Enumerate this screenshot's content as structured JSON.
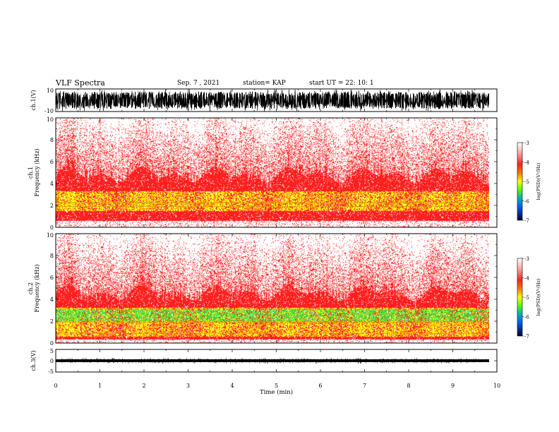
{
  "header": {
    "title": "VLF Spectra",
    "date": "Sep. 7 , 2021",
    "station": "station= KAP",
    "start_ut": "start UT =  22: 10: 1"
  },
  "colors": {
    "spectrogram_background": "#ffffff",
    "spectrogram_main": "#ff2020",
    "spectrogram_light": "#ffb0b0",
    "band_yellow": "#ffff00",
    "band_green": "#40e040",
    "waveform": "#000000"
  },
  "chart_data": [
    {
      "type": "line",
      "name": "ch1-waveform",
      "ylabel": "ch.1(V)",
      "ylim": [
        -10,
        10
      ],
      "ytick_labels": [
        "10",
        "-10"
      ],
      "xlim": [
        0,
        10
      ],
      "signal_min_v": -7,
      "signal_max_v": 7,
      "data_end_min": 9.82
    },
    {
      "type": "heatmap",
      "name": "ch1-spectrogram",
      "ylabel": "ch.1\nFrequency (kHz)",
      "ylim": [
        0,
        10
      ],
      "ytick_labels": [
        "0",
        "2",
        "4",
        "6",
        "8",
        "10"
      ],
      "xlim": [
        0,
        10
      ],
      "data_end_min": 9.82,
      "colorbar": {
        "label": "log(PSD)(V²/Hz)",
        "range": [
          -7,
          -3
        ],
        "tick_labels": [
          "-3",
          "-4",
          "-5",
          "-6",
          "-7"
        ]
      },
      "bands_khz": {
        "red_top": 4.8,
        "yellow_low": 1.5,
        "yellow_high": 3.3,
        "green_low": 0,
        "green_high": 0,
        "lower_edge": 0.6
      },
      "lines_khz": [
        1.9,
        2.2,
        2.3
      ]
    },
    {
      "type": "heatmap",
      "name": "ch2-spectrogram",
      "ylabel": "ch.2\nFrequency (kHz)",
      "ylim": [
        0,
        10
      ],
      "ytick_labels": [
        "0",
        "2",
        "4",
        "6",
        "8",
        "10"
      ],
      "xlim": [
        0,
        10
      ],
      "data_end_min": 9.82,
      "colorbar": {
        "label": "log(PSD)(V²/Hz)",
        "range": [
          -7,
          -3
        ],
        "tick_labels": [
          "-3",
          "-4",
          "-5",
          "-6",
          "-7"
        ]
      },
      "bands_khz": {
        "red_top": 4.6,
        "yellow_low": 0.6,
        "yellow_high": 3.2,
        "green_low": 2.0,
        "green_high": 3.1,
        "lower_edge": 0.3
      },
      "lines_khz": [
        1.9,
        2.0,
        0.9
      ]
    },
    {
      "type": "line",
      "name": "ch3-waveform",
      "ylabel": "ch.3(V)",
      "ylim": [
        -5,
        5
      ],
      "ytick_labels": [
        "5",
        "0",
        "-5"
      ],
      "xlim": [
        0,
        10
      ],
      "signal_min_v": -0.6,
      "signal_max_v": 0.6,
      "data_end_min": 9.82
    }
  ],
  "x_axis": {
    "label": "Time (min)",
    "tick_labels": [
      "0",
      "1",
      "2",
      "3",
      "4",
      "5",
      "6",
      "7",
      "8",
      "9",
      "10"
    ]
  }
}
